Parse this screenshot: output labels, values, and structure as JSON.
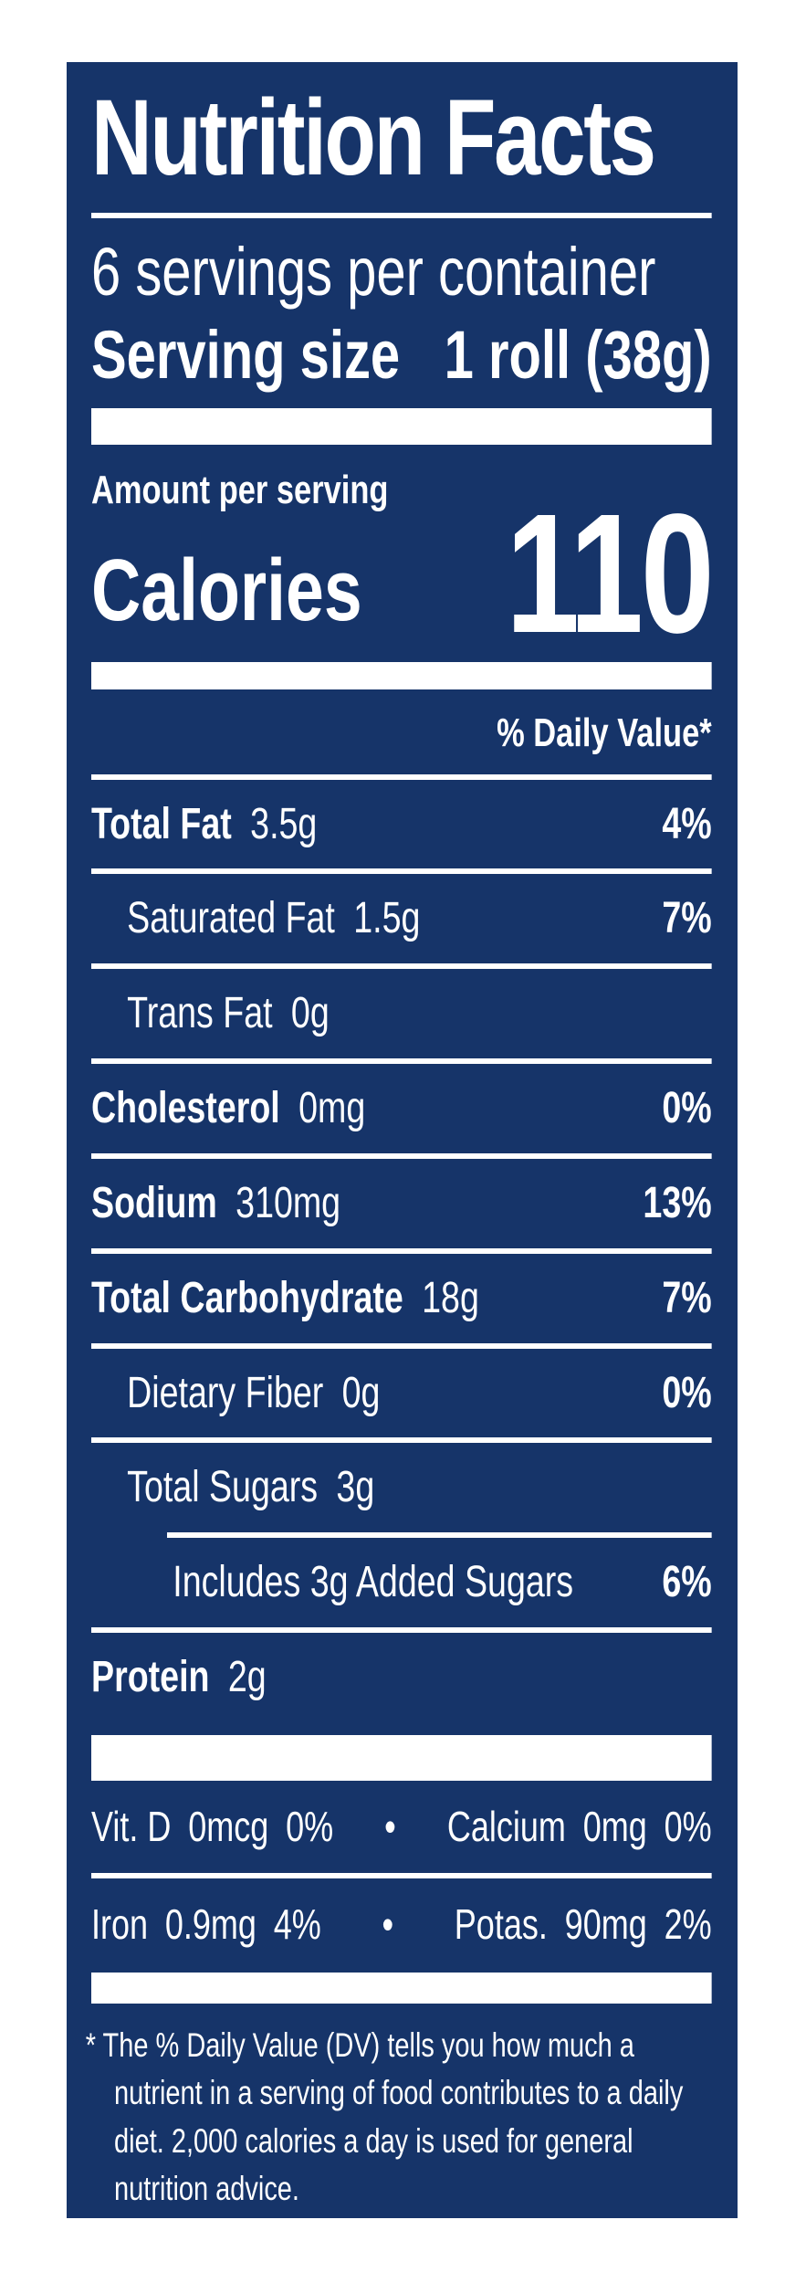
{
  "label": {
    "title": "Nutrition Facts",
    "servings_per_container": "6 servings per container",
    "serving_size_label": "Serving size",
    "serving_size_value": "1 roll (38g)",
    "amount_per_serving": "Amount per serving",
    "calories_label": "Calories",
    "calories_value": "110",
    "daily_value_header": "% Daily Value*",
    "rows": [
      {
        "name": "Total Fat",
        "amount": "3.5g",
        "dv": "4%"
      },
      {
        "name": "Saturated Fat",
        "amount": "1.5g",
        "dv": "7%"
      },
      {
        "name": "Trans Fat",
        "amount": "0g",
        "dv": ""
      },
      {
        "name": "Cholesterol",
        "amount": "0mg",
        "dv": "0%"
      },
      {
        "name": "Sodium",
        "amount": "310mg",
        "dv": "13%"
      },
      {
        "name": "Total Carbohydrate",
        "amount": "18g",
        "dv": "7%"
      },
      {
        "name": "Dietary Fiber",
        "amount": "0g",
        "dv": "0%"
      },
      {
        "name": "Total Sugars",
        "amount": "3g",
        "dv": ""
      },
      {
        "name": "Includes 3g Added Sugars",
        "amount": "",
        "dv": "6%"
      },
      {
        "name": "Protein",
        "amount": "2g",
        "dv": ""
      }
    ],
    "vitamin_rows": [
      {
        "left_name": "Vit. D",
        "left_amount": "0mcg",
        "left_dv": "0%",
        "separator": "•",
        "right_name": "Calcium",
        "right_amount": "0mg",
        "right_dv": "0%"
      },
      {
        "left_name": "Iron",
        "left_amount": "0.9mg",
        "left_dv": "4%",
        "separator": "•",
        "right_name": "Potas.",
        "right_amount": "90mg",
        "right_dv": "2%"
      }
    ],
    "footnote_marker": "*",
    "footnote": "The % Daily Value (DV) tells you how much a nutrient in a serving of food contributes to a daily diet. 2,000 calories a day is used for general nutrition advice.",
    "colors": {
      "panel_background": "#163469",
      "text": "#ffffff",
      "page_background": "#ffffff"
    }
  }
}
